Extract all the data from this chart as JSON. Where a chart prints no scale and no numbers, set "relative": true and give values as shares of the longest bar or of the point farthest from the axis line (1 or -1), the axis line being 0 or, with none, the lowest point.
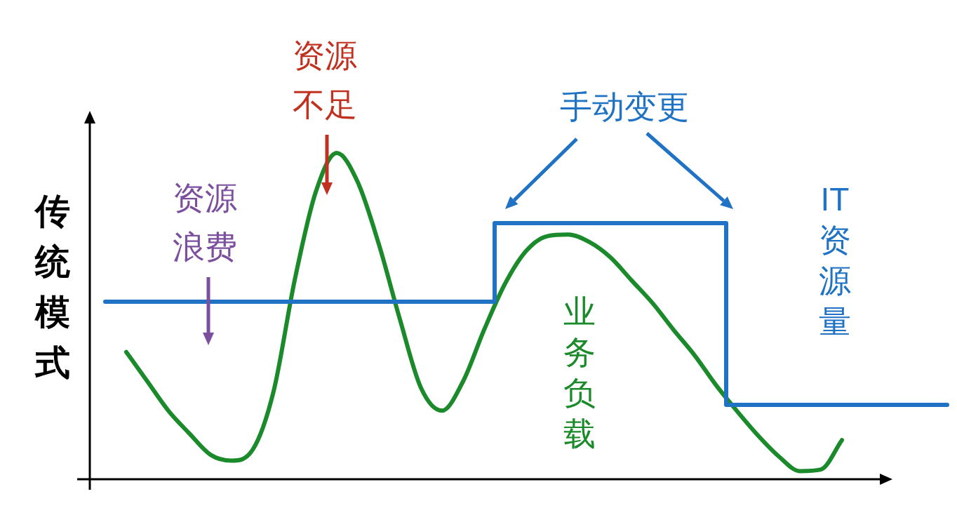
{
  "chart_data": {
    "type": "line",
    "relative": true,
    "ylabel": "传统模式",
    "line_style": "solid",
    "categories": [
      null,
      null,
      null,
      null,
      null,
      null,
      null,
      null,
      null,
      null,
      null,
      null,
      null,
      null,
      null,
      null,
      null,
      null,
      null,
      null,
      null,
      null,
      null,
      null,
      null,
      null,
      null,
      null,
      null,
      null,
      null,
      null,
      null,
      null,
      null,
      null,
      null,
      null,
      null,
      null,
      null
    ],
    "series": [
      {
        "name": "业务负载",
        "color": "#1a8a2a",
        "values": [
          null,
          0.39,
          0.3,
          0.21,
          0.14,
          0.075,
          0.057,
          0.09,
          0.27,
          0.61,
          0.88,
          1.0,
          0.91,
          0.72,
          0.49,
          0.28,
          0.21,
          0.3,
          0.458,
          0.6,
          0.7,
          0.745,
          0.75,
          0.727,
          0.68,
          0.61,
          0.54,
          0.458,
          0.38,
          0.29,
          0.21,
          0.135,
          0.07,
          0.025,
          0.03,
          0.12,
          null,
          null,
          null,
          null,
          null
        ]
      },
      {
        "name": "IT 资源量",
        "type": "step",
        "color": "#1f72c4",
        "values": [
          0.544,
          0.544,
          0.544,
          0.544,
          0.544,
          0.544,
          0.544,
          0.544,
          0.544,
          0.544,
          0.544,
          0.544,
          0.544,
          0.544,
          0.544,
          0.544,
          0.544,
          0.544,
          0.544,
          0.785,
          0.785,
          0.785,
          0.785,
          0.785,
          0.785,
          0.785,
          0.785,
          0.785,
          0.785,
          0.785,
          0.228,
          0.228,
          0.228,
          0.228,
          0.228,
          0.228,
          0.228,
          0.228,
          0.228,
          0.228,
          0.228
        ]
      }
    ],
    "annotations": [
      "资源浪费",
      "资源不足",
      "手动变更"
    ]
  }
}
